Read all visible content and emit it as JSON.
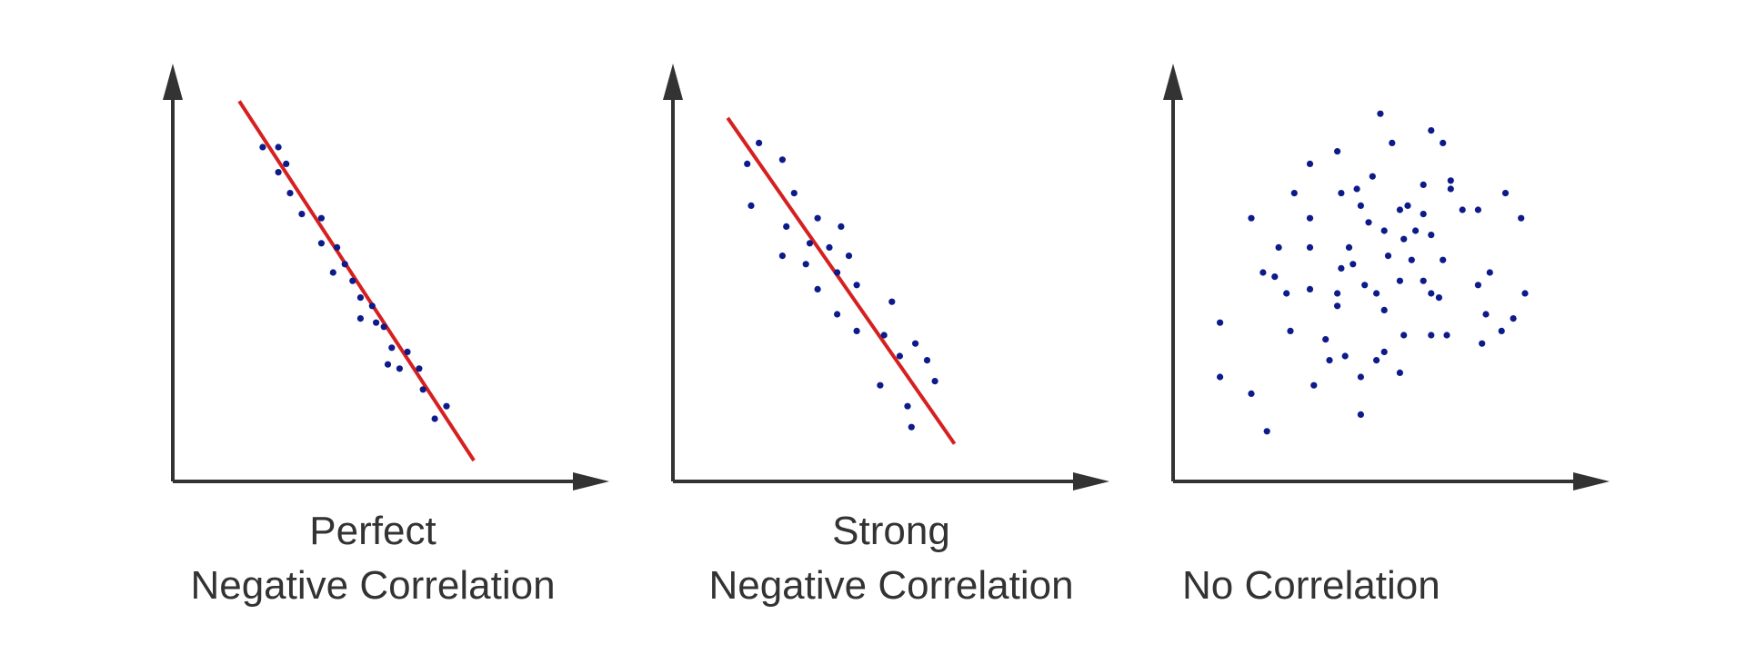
{
  "colors": {
    "axis": "#333333",
    "trend_line": "#d62020",
    "points": "#0d1a8a",
    "caption_text": "#333333",
    "background": "#ffffff"
  },
  "chart_data": [
    {
      "type": "scatter",
      "caption_lines": [
        "Perfect",
        "Negative Correlation"
      ],
      "xlabel": "",
      "ylabel": "",
      "xlim": [
        0,
        100
      ],
      "ylim": [
        0,
        100
      ],
      "grid": false,
      "has_trend_line": true,
      "trend_line": {
        "x": [
          17,
          77
        ],
        "y": [
          91,
          5
        ]
      },
      "points": [
        {
          "x": 23,
          "y": 80
        },
        {
          "x": 27,
          "y": 80
        },
        {
          "x": 29,
          "y": 76
        },
        {
          "x": 27,
          "y": 74
        },
        {
          "x": 30,
          "y": 69
        },
        {
          "x": 33,
          "y": 64
        },
        {
          "x": 38,
          "y": 63
        },
        {
          "x": 38,
          "y": 57
        },
        {
          "x": 42,
          "y": 56
        },
        {
          "x": 44,
          "y": 52
        },
        {
          "x": 41,
          "y": 50
        },
        {
          "x": 46,
          "y": 48
        },
        {
          "x": 48,
          "y": 44
        },
        {
          "x": 51,
          "y": 42
        },
        {
          "x": 52,
          "y": 38
        },
        {
          "x": 48,
          "y": 39
        },
        {
          "x": 54,
          "y": 37
        },
        {
          "x": 56,
          "y": 32
        },
        {
          "x": 60,
          "y": 31
        },
        {
          "x": 55,
          "y": 28
        },
        {
          "x": 58,
          "y": 27
        },
        {
          "x": 63,
          "y": 27
        },
        {
          "x": 64,
          "y": 22
        },
        {
          "x": 70,
          "y": 18
        },
        {
          "x": 67,
          "y": 15
        }
      ]
    },
    {
      "type": "scatter",
      "caption_lines": [
        "Strong",
        "Negative Correlation"
      ],
      "xlabel": "",
      "ylabel": "",
      "xlim": [
        0,
        100
      ],
      "ylim": [
        0,
        100
      ],
      "grid": false,
      "has_trend_line": true,
      "trend_line": {
        "x": [
          14,
          72
        ],
        "y": [
          87,
          9
        ]
      },
      "points": [
        {
          "x": 22,
          "y": 81
        },
        {
          "x": 19,
          "y": 76
        },
        {
          "x": 28,
          "y": 77
        },
        {
          "x": 31,
          "y": 69
        },
        {
          "x": 20,
          "y": 66
        },
        {
          "x": 29,
          "y": 61
        },
        {
          "x": 37,
          "y": 63
        },
        {
          "x": 43,
          "y": 61
        },
        {
          "x": 35,
          "y": 57
        },
        {
          "x": 40,
          "y": 56
        },
        {
          "x": 45,
          "y": 54
        },
        {
          "x": 28,
          "y": 54
        },
        {
          "x": 34,
          "y": 52
        },
        {
          "x": 42,
          "y": 50
        },
        {
          "x": 47,
          "y": 47
        },
        {
          "x": 37,
          "y": 46
        },
        {
          "x": 56,
          "y": 43
        },
        {
          "x": 42,
          "y": 40
        },
        {
          "x": 47,
          "y": 36
        },
        {
          "x": 54,
          "y": 35
        },
        {
          "x": 62,
          "y": 33
        },
        {
          "x": 58,
          "y": 30
        },
        {
          "x": 65,
          "y": 29
        },
        {
          "x": 67,
          "y": 24
        },
        {
          "x": 53,
          "y": 23
        },
        {
          "x": 60,
          "y": 18
        },
        {
          "x": 61,
          "y": 13
        }
      ]
    },
    {
      "type": "scatter",
      "caption_lines": [
        "No Correlation"
      ],
      "xlabel": "",
      "ylabel": "",
      "xlim": [
        0,
        100
      ],
      "ylim": [
        0,
        100
      ],
      "grid": false,
      "has_trend_line": false,
      "points": [
        {
          "x": 53,
          "y": 88
        },
        {
          "x": 66,
          "y": 84
        },
        {
          "x": 56,
          "y": 81
        },
        {
          "x": 69,
          "y": 81
        },
        {
          "x": 42,
          "y": 79
        },
        {
          "x": 35,
          "y": 76
        },
        {
          "x": 31,
          "y": 69
        },
        {
          "x": 51,
          "y": 73
        },
        {
          "x": 64,
          "y": 71
        },
        {
          "x": 71,
          "y": 72
        },
        {
          "x": 47,
          "y": 70
        },
        {
          "x": 43,
          "y": 69
        },
        {
          "x": 60,
          "y": 66
        },
        {
          "x": 48,
          "y": 66
        },
        {
          "x": 58,
          "y": 65
        },
        {
          "x": 64,
          "y": 64
        },
        {
          "x": 74,
          "y": 65
        },
        {
          "x": 71,
          "y": 70
        },
        {
          "x": 85,
          "y": 69
        },
        {
          "x": 89,
          "y": 63
        },
        {
          "x": 78,
          "y": 65
        },
        {
          "x": 20,
          "y": 63
        },
        {
          "x": 35,
          "y": 63
        },
        {
          "x": 50,
          "y": 62
        },
        {
          "x": 54,
          "y": 60
        },
        {
          "x": 62,
          "y": 60
        },
        {
          "x": 66,
          "y": 59
        },
        {
          "x": 59,
          "y": 58
        },
        {
          "x": 27,
          "y": 56
        },
        {
          "x": 35,
          "y": 56
        },
        {
          "x": 45,
          "y": 56
        },
        {
          "x": 55,
          "y": 54
        },
        {
          "x": 61,
          "y": 53
        },
        {
          "x": 69,
          "y": 53
        },
        {
          "x": 81,
          "y": 50
        },
        {
          "x": 46,
          "y": 52
        },
        {
          "x": 43,
          "y": 51
        },
        {
          "x": 23,
          "y": 50
        },
        {
          "x": 26,
          "y": 49
        },
        {
          "x": 58,
          "y": 48
        },
        {
          "x": 64,
          "y": 48
        },
        {
          "x": 49,
          "y": 47
        },
        {
          "x": 78,
          "y": 47
        },
        {
          "x": 35,
          "y": 46
        },
        {
          "x": 29,
          "y": 45
        },
        {
          "x": 42,
          "y": 45
        },
        {
          "x": 66,
          "y": 45
        },
        {
          "x": 52,
          "y": 45
        },
        {
          "x": 68,
          "y": 44
        },
        {
          "x": 42,
          "y": 42
        },
        {
          "x": 54,
          "y": 41
        },
        {
          "x": 90,
          "y": 45
        },
        {
          "x": 87,
          "y": 39
        },
        {
          "x": 12,
          "y": 38
        },
        {
          "x": 30,
          "y": 36
        },
        {
          "x": 80,
          "y": 40
        },
        {
          "x": 84,
          "y": 36
        },
        {
          "x": 59,
          "y": 35
        },
        {
          "x": 66,
          "y": 35
        },
        {
          "x": 70,
          "y": 35
        },
        {
          "x": 39,
          "y": 34
        },
        {
          "x": 79,
          "y": 33
        },
        {
          "x": 44,
          "y": 30
        },
        {
          "x": 52,
          "y": 29
        },
        {
          "x": 40,
          "y": 29
        },
        {
          "x": 54,
          "y": 31
        },
        {
          "x": 58,
          "y": 26
        },
        {
          "x": 12,
          "y": 25
        },
        {
          "x": 48,
          "y": 25
        },
        {
          "x": 36,
          "y": 23
        },
        {
          "x": 20,
          "y": 21
        },
        {
          "x": 48,
          "y": 16
        },
        {
          "x": 24,
          "y": 12
        }
      ]
    }
  ]
}
